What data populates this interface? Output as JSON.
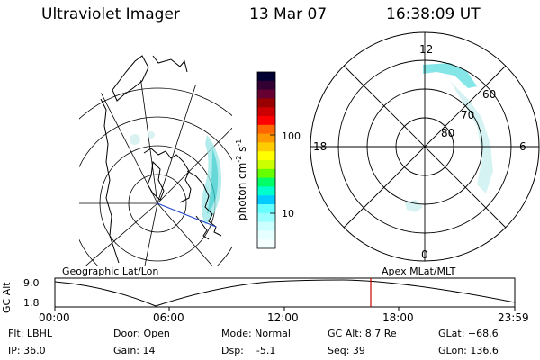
{
  "header": {
    "instrument": "Ultraviolet Imager",
    "date": "13 Mar 07",
    "time": "16:38:09 UT"
  },
  "colorbar": {
    "label": "photon cm",
    "label_sup1": "-2",
    "label_mid": "s",
    "label_sup2": "-1",
    "ticks": [
      "100",
      "10"
    ],
    "colors": [
      "#000033",
      "#330033",
      "#660033",
      "#990000",
      "#cc0000",
      "#ff0000",
      "#ff6600",
      "#ff9900",
      "#ffcc00",
      "#ffff00",
      "#ccff00",
      "#66ff00",
      "#00ff66",
      "#00ffcc",
      "#00ccff",
      "#66ffff",
      "#99ffff",
      "#ccffff",
      "#e6ffff",
      "#f4ffff"
    ]
  },
  "maps": {
    "left_label": "Geographic Lat/Lon",
    "right_label": "Apex MLat/MLT",
    "polar_labels": {
      "top": "12",
      "left": "18",
      "right": "6",
      "bottom": "0"
    },
    "lat_labels": [
      "60",
      "70",
      "80"
    ],
    "aurora_color": "#66e0e0"
  },
  "altplot": {
    "label": "GC Alt",
    "ymax": "9.0",
    "ymin": "1.8",
    "xticks": [
      "00:00",
      "06:00",
      "12:00",
      "18:00",
      "23:59"
    ],
    "marker_color": "#cc0000"
  },
  "stats": {
    "filter": "Flt: LBHL",
    "ip": "IP: 36.0",
    "door": "Door: Open",
    "gain": "Gain: 14",
    "mode": "Mode: Normal",
    "dsp": "Dsp:    -5.1",
    "gcalt": "GC Alt: 8.7 Re",
    "seq": "Seq: 39",
    "glat": "GLat: −68.6",
    "glon": "GLon: 136.6"
  }
}
